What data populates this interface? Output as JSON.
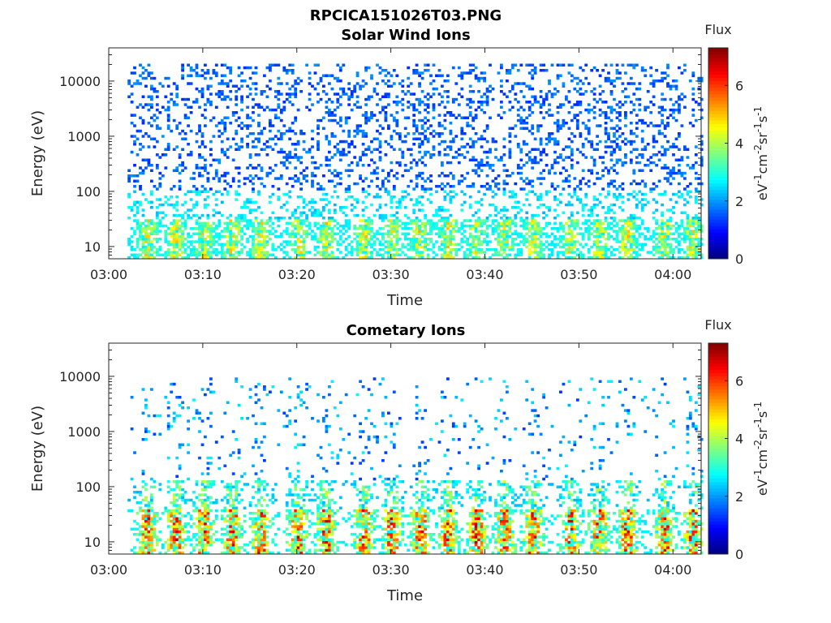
{
  "figure_title": "RPCICA151026T03.PNG",
  "colormap": [
    "#00007f",
    "#0000ff",
    "#007fff",
    "#00ffff",
    "#7fff7f",
    "#ffff00",
    "#ff7f00",
    "#ff0000",
    "#7f0000"
  ],
  "chart_data": [
    {
      "type": "heatmap",
      "title": "Solar Wind Ions",
      "xlabel": "Time",
      "ylabel": "Energy (eV)",
      "y_scale": "log",
      "ylim": [
        6,
        40000
      ],
      "xlim": [
        "03:00",
        "04:03"
      ],
      "x_tick_labels": [
        "03:00",
        "03:10",
        "03:20",
        "03:30",
        "03:40",
        "03:50",
        "04:00"
      ],
      "y_tick_labels": [
        "10",
        "100",
        "1000",
        "10000"
      ],
      "y_tick_values": [
        10,
        100,
        1000,
        10000
      ],
      "data_start": "03:02",
      "data_end": "04:03",
      "colorbar": {
        "label": "Flux",
        "units": "eV-1cm-2sr-1s-1",
        "ticks": [
          "0",
          "2",
          "4",
          "6"
        ],
        "range": [
          0,
          7.3
        ]
      },
      "burst_times": [
        "03:04",
        "03:07",
        "03:10",
        "03:13",
        "03:16",
        "03:20",
        "03:23",
        "03:27",
        "03:30",
        "03:33",
        "03:36",
        "03:39",
        "03:42",
        "03:45",
        "03:49",
        "03:52",
        "03:55",
        "03:59",
        "04:02"
      ],
      "peak_flux": 5.3,
      "background": "scattered counts 100–20000 eV"
    },
    {
      "type": "heatmap",
      "title": "Cometary Ions",
      "xlabel": "Time",
      "ylabel": "Energy (eV)",
      "y_scale": "log",
      "ylim": [
        6,
        40000
      ],
      "xlim": [
        "03:00",
        "04:03"
      ],
      "x_tick_labels": [
        "03:00",
        "03:10",
        "03:20",
        "03:30",
        "03:40",
        "03:50",
        "04:00"
      ],
      "y_tick_labels": [
        "10",
        "100",
        "1000",
        "10000"
      ],
      "y_tick_values": [
        10,
        100,
        1000,
        10000
      ],
      "data_start": "03:02",
      "data_end": "04:03",
      "colorbar": {
        "label": "Flux",
        "units": "eV-1cm-2sr-1s-1",
        "ticks": [
          "0",
          "2",
          "4",
          "6"
        ],
        "range": [
          0,
          7.3
        ]
      },
      "burst_times": [
        "03:04",
        "03:07",
        "03:10",
        "03:13",
        "03:16",
        "03:20",
        "03:23",
        "03:27",
        "03:30",
        "03:33",
        "03:36",
        "03:39",
        "03:42",
        "03:45",
        "03:49",
        "03:52",
        "03:55",
        "03:59",
        "04:02"
      ],
      "peak_flux": 7.0,
      "background": "sparse counts 100–10000 eV"
    }
  ]
}
